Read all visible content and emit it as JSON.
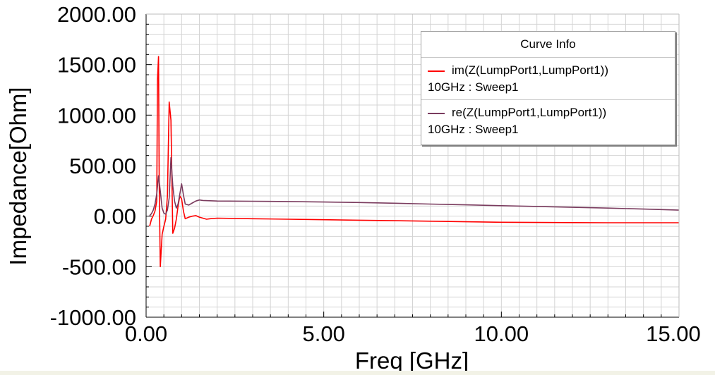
{
  "chart_data": {
    "type": "line",
    "xlabel": "Freq [GHz]",
    "ylabel": "Impedance[Ohm]",
    "xlim": [
      0,
      15
    ],
    "ylim": [
      -1000,
      2000
    ],
    "grid": true,
    "x_ticks": [
      "0.00",
      "5.00",
      "10.00",
      "15.00"
    ],
    "y_ticks": [
      "2000.00",
      "1500.00",
      "1000.00",
      "500.00",
      "0.00",
      "-500.00",
      "-1000.00"
    ],
    "legend": {
      "title": "Curve Info",
      "placement": "top-right",
      "entries": [
        {
          "name": "im(Z(LumpPort1,LumpPort1))",
          "sub": "10GHz : Sweep1",
          "color": "#ff0000"
        },
        {
          "name": "re(Z(LumpPort1,LumpPort1))",
          "sub": "10GHz : Sweep1",
          "color": "#7a3b5e"
        }
      ]
    },
    "series": [
      {
        "name": "im(Z(LumpPort1,LumpPort1))",
        "color": "#ff0000",
        "x": [
          0.1,
          0.15,
          0.2,
          0.25,
          0.3,
          0.32,
          0.35,
          0.37,
          0.4,
          0.45,
          0.5,
          0.55,
          0.6,
          0.65,
          0.7,
          0.75,
          0.8,
          0.85,
          0.9,
          0.95,
          1.0,
          1.05,
          1.1,
          1.2,
          1.3,
          1.4,
          1.5,
          1.6,
          1.7,
          1.8,
          2,
          3,
          4,
          5,
          6,
          7,
          8,
          9,
          10,
          11,
          12,
          13,
          14,
          15
        ],
        "y": [
          -100,
          -30,
          5,
          50,
          150,
          1350,
          1580,
          300,
          -500,
          -180,
          -100,
          -30,
          200,
          1130,
          950,
          -170,
          -120,
          -30,
          100,
          200,
          170,
          50,
          -25,
          -10,
          0,
          5,
          -10,
          -20,
          -30,
          -25,
          -20,
          -25,
          -30,
          -35,
          -40,
          -45,
          -50,
          -55,
          -60,
          -62,
          -64,
          -65,
          -65,
          -65
        ]
      },
      {
        "name": "re(Z(LumpPort1,LumpPort1))",
        "color": "#7a3b5e",
        "x": [
          0.1,
          0.15,
          0.2,
          0.25,
          0.3,
          0.35,
          0.4,
          0.45,
          0.5,
          0.55,
          0.6,
          0.65,
          0.7,
          0.75,
          0.8,
          0.85,
          0.9,
          0.95,
          1.0,
          1.05,
          1.1,
          1.2,
          1.3,
          1.4,
          1.5,
          1.6,
          2,
          3,
          4,
          5,
          6,
          7,
          8,
          9,
          10,
          11,
          12,
          13,
          14,
          15
        ],
        "y": [
          5,
          25,
          60,
          120,
          220,
          400,
          250,
          80,
          30,
          20,
          60,
          180,
          580,
          300,
          150,
          80,
          120,
          220,
          320,
          210,
          120,
          110,
          130,
          150,
          160,
          155,
          150,
          148,
          145,
          140,
          135,
          128,
          120,
          112,
          104,
          96,
          88,
          80,
          70,
          60
        ]
      }
    ]
  }
}
